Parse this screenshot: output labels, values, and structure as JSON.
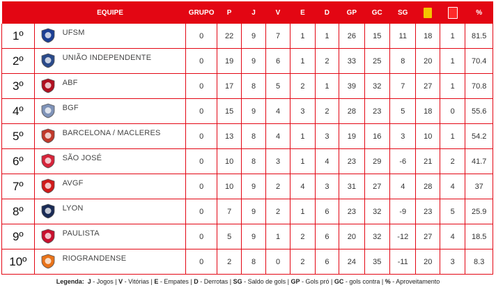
{
  "header": {
    "team": "EQUIPE",
    "group": "GRUPO",
    "p": "P",
    "j": "J",
    "v": "V",
    "e": "E",
    "d": "D",
    "gp": "GP",
    "gc": "GC",
    "sg": "SG",
    "pct": "%",
    "yellow_card_icon": "yellow-card-icon",
    "red_card_icon": "red-card-icon",
    "yellow_color": "#f5c400",
    "red_color": "#e30613"
  },
  "rows": [
    {
      "pos": "1º",
      "team": "UFSM",
      "crest_color": "#1c3f94",
      "grupo": "0",
      "p": "22",
      "j": "9",
      "v": "7",
      "e": "1",
      "d": "1",
      "gp": "26",
      "gc": "15",
      "sg": "11",
      "yc": "18",
      "rc": "1",
      "pct": "81.5"
    },
    {
      "pos": "2º",
      "team": "UNIÃO INDEPENDENTE",
      "crest_color": "#2a4a8a",
      "grupo": "0",
      "p": "19",
      "j": "9",
      "v": "6",
      "e": "1",
      "d": "2",
      "gp": "33",
      "gc": "25",
      "sg": "8",
      "yc": "20",
      "rc": "1",
      "pct": "70.4"
    },
    {
      "pos": "3º",
      "team": "ABF",
      "crest_color": "#b01020",
      "grupo": "0",
      "p": "17",
      "j": "8",
      "v": "5",
      "e": "2",
      "d": "1",
      "gp": "39",
      "gc": "32",
      "sg": "7",
      "yc": "27",
      "rc": "1",
      "pct": "70.8"
    },
    {
      "pos": "4º",
      "team": "BGF",
      "crest_color": "#7f93b8",
      "grupo": "0",
      "p": "15",
      "j": "9",
      "v": "4",
      "e": "3",
      "d": "2",
      "gp": "28",
      "gc": "23",
      "sg": "5",
      "yc": "18",
      "rc": "0",
      "pct": "55.6"
    },
    {
      "pos": "5º",
      "team": "BARCELONA / MACLERES",
      "crest_color": "#c0392b",
      "grupo": "0",
      "p": "13",
      "j": "8",
      "v": "4",
      "e": "1",
      "d": "3",
      "gp": "19",
      "gc": "16",
      "sg": "3",
      "yc": "10",
      "rc": "1",
      "pct": "54.2"
    },
    {
      "pos": "6º",
      "team": "SÃO JOSÉ",
      "crest_color": "#d6243a",
      "grupo": "0",
      "p": "10",
      "j": "8",
      "v": "3",
      "e": "1",
      "d": "4",
      "gp": "23",
      "gc": "29",
      "sg": "-6",
      "yc": "21",
      "rc": "2",
      "pct": "41.7"
    },
    {
      "pos": "7º",
      "team": "AVGF",
      "crest_color": "#d01a1a",
      "grupo": "0",
      "p": "10",
      "j": "9",
      "v": "2",
      "e": "4",
      "d": "3",
      "gp": "31",
      "gc": "27",
      "sg": "4",
      "yc": "28",
      "rc": "4",
      "pct": "37"
    },
    {
      "pos": "8º",
      "team": "LYON",
      "crest_color": "#1a2b55",
      "grupo": "0",
      "p": "7",
      "j": "9",
      "v": "2",
      "e": "1",
      "d": "6",
      "gp": "23",
      "gc": "32",
      "sg": "-9",
      "yc": "23",
      "rc": "5",
      "pct": "25.9"
    },
    {
      "pos": "9º",
      "team": "PAULISTA",
      "crest_color": "#c8102e",
      "grupo": "0",
      "p": "5",
      "j": "9",
      "v": "1",
      "e": "2",
      "d": "6",
      "gp": "20",
      "gc": "32",
      "sg": "-12",
      "yc": "27",
      "rc": "4",
      "pct": "18.5"
    },
    {
      "pos": "10º",
      "team": "RIOGRANDENSE",
      "crest_color": "#e8731a",
      "grupo": "0",
      "p": "2",
      "j": "8",
      "v": "0",
      "e": "2",
      "d": "6",
      "gp": "24",
      "gc": "35",
      "sg": "-11",
      "yc": "20",
      "rc": "3",
      "pct": "8.3"
    }
  ],
  "legend": {
    "title": "Legenda:",
    "j_key": "J",
    "j_desc": " - Jogos | ",
    "v_key": "V",
    "v_desc": " - Vitórias | ",
    "e_key": "E",
    "e_desc": " - Empates | ",
    "d_key": "D",
    "d_desc": " - Derrotas | ",
    "sg_key": "SG",
    "sg_desc": " - Saldo de gols | ",
    "gp_key": "GP",
    "gp_desc": " - Gols pró | ",
    "gc_key": "GC",
    "gc_desc": " - gols contra | ",
    "pct_key": "%",
    "pct_desc": " - Aproveitamento"
  }
}
